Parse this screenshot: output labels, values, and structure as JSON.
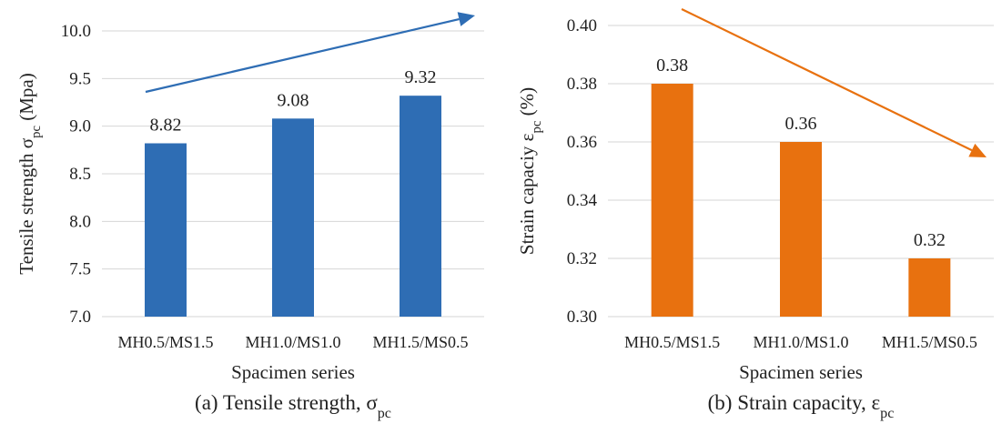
{
  "chart_data": [
    {
      "type": "bar",
      "categories": [
        "MH0.5/MS1.5",
        "MH1.0/MS1.0",
        "MH1.5/MS0.5"
      ],
      "values": [
        8.82,
        9.08,
        9.32
      ],
      "data_labels": [
        "8.82",
        "9.08",
        "9.32"
      ],
      "ylim": [
        7.0,
        10.0
      ],
      "yticks": [
        "7.0",
        "7.5",
        "8.0",
        "8.5",
        "9.0",
        "9.5",
        "10.0"
      ],
      "ylabel": "Tensile strength σ",
      "ylabel_sub": "pc",
      "ylabel_suffix": " (Mpa)",
      "xlabel": "Spacimen series",
      "caption": "(a) Tensile strength, σ",
      "caption_sub": "pc",
      "color": "#2e6db4",
      "grid": true,
      "trend": "increasing"
    },
    {
      "type": "bar",
      "categories": [
        "MH0.5/MS1.5",
        "MH1.0/MS1.0",
        "MH1.5/MS0.5"
      ],
      "values": [
        0.38,
        0.36,
        0.32
      ],
      "data_labels": [
        "0.38",
        "0.36",
        "0.32"
      ],
      "ylim": [
        0.3,
        0.4
      ],
      "yticks": [
        "0.30",
        "0.32",
        "0.34",
        "0.36",
        "0.38",
        "0.40"
      ],
      "ylabel": "Strain capaciy ε",
      "ylabel_sub": "pc",
      "ylabel_suffix": " (%)",
      "xlabel": "Spacimen series",
      "caption": "(b) Strain capacity, ε",
      "caption_sub": "pc",
      "color": "#e8710f",
      "grid": true,
      "trend": "decreasing"
    }
  ]
}
